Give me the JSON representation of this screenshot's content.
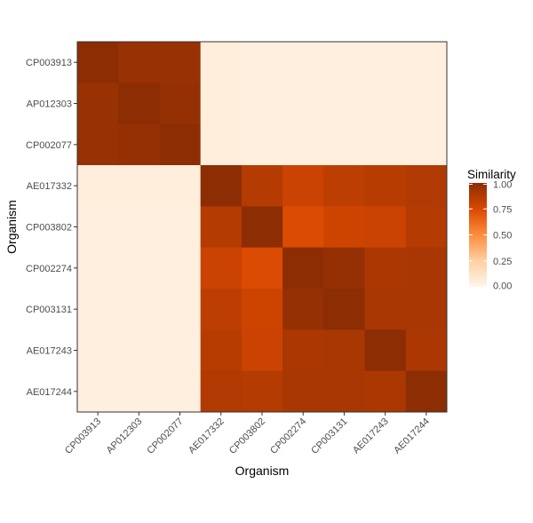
{
  "chart_data": {
    "type": "heatmap",
    "xlabel": "Organism",
    "ylabel": "Organism",
    "organisms": [
      "CP003913",
      "AP012303",
      "CP002077",
      "AE017332",
      "CP003802",
      "CP002274",
      "CP003131",
      "AE017243",
      "AE017244"
    ],
    "matrix": [
      [
        1.0,
        0.96,
        0.96,
        0.05,
        0.04,
        0.04,
        0.04,
        0.04,
        0.04
      ],
      [
        0.96,
        1.0,
        0.97,
        0.05,
        0.04,
        0.04,
        0.04,
        0.04,
        0.04
      ],
      [
        0.96,
        0.97,
        1.0,
        0.05,
        0.04,
        0.04,
        0.04,
        0.04,
        0.04
      ],
      [
        0.05,
        0.05,
        0.05,
        1.0,
        0.87,
        0.8,
        0.84,
        0.86,
        0.88
      ],
      [
        0.04,
        0.04,
        0.04,
        0.87,
        1.0,
        0.74,
        0.79,
        0.8,
        0.87
      ],
      [
        0.04,
        0.04,
        0.04,
        0.8,
        0.74,
        1.0,
        0.97,
        0.9,
        0.91
      ],
      [
        0.04,
        0.04,
        0.04,
        0.84,
        0.79,
        0.97,
        1.0,
        0.91,
        0.91
      ],
      [
        0.04,
        0.04,
        0.04,
        0.86,
        0.8,
        0.9,
        0.91,
        1.0,
        0.9
      ],
      [
        0.04,
        0.04,
        0.04,
        0.88,
        0.87,
        0.91,
        0.91,
        0.9,
        1.0
      ]
    ],
    "legend": {
      "title": "Similarity",
      "breaks": [
        "0.00",
        "0.25",
        "0.50",
        "0.75",
        "1.00"
      ],
      "values": [
        0,
        0.25,
        0.5,
        0.75,
        1.0
      ],
      "range": [
        0,
        1
      ]
    },
    "colors": {
      "low": "#fff5eb",
      "mid_low": "#fdd0a2",
      "mid": "#fd8d3c",
      "mid_high": "#d94801",
      "high": "#8c2d04"
    }
  }
}
